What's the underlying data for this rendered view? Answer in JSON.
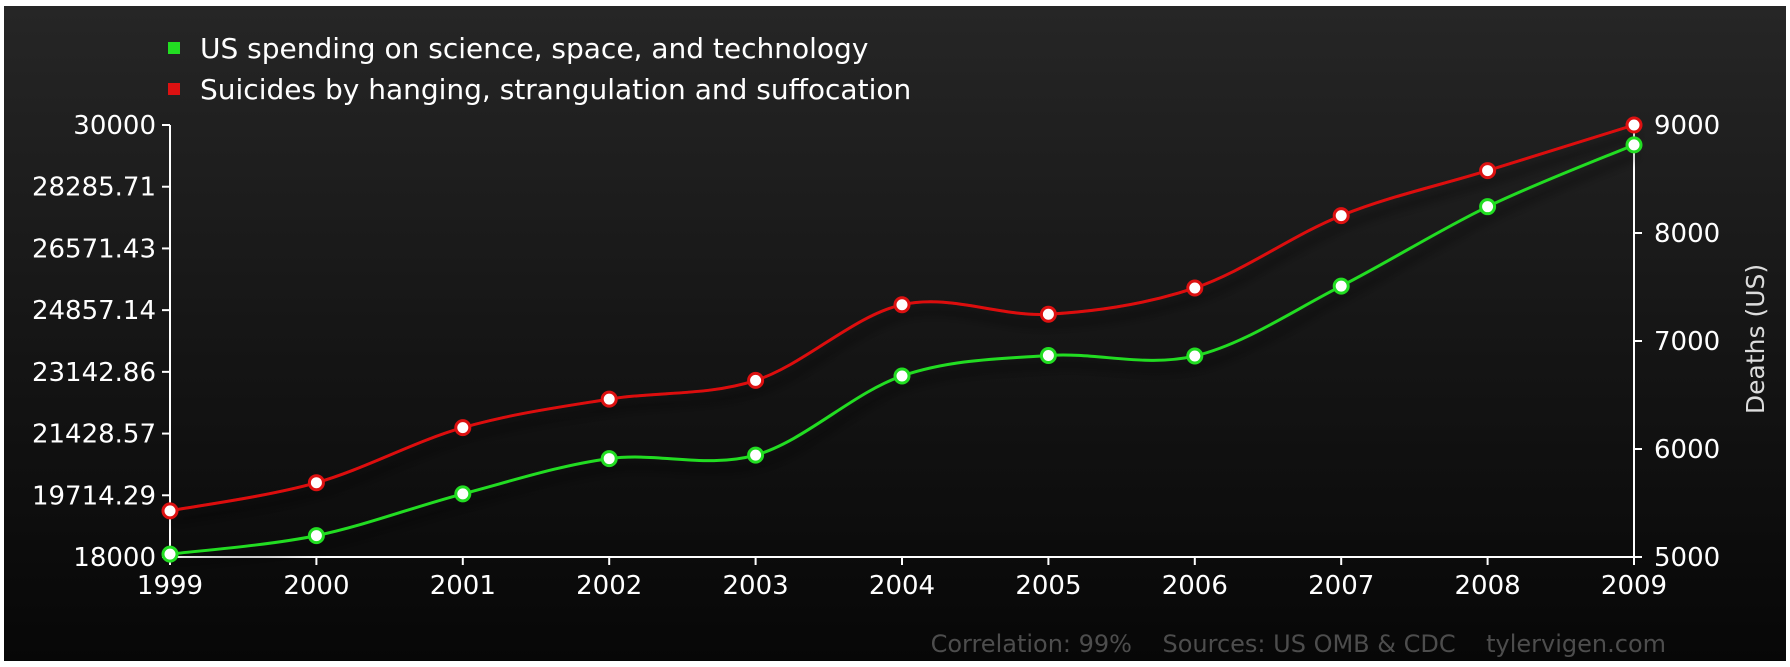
{
  "chart_data": {
    "type": "line",
    "x": [
      "1999",
      "2000",
      "2001",
      "2002",
      "2003",
      "2004",
      "2005",
      "2006",
      "2007",
      "2008",
      "2009"
    ],
    "series": [
      {
        "name": "US spending on science, space, and technology",
        "color": "#22dd22",
        "axis": "left",
        "values": [
          18079,
          18594,
          19753,
          20734,
          20831,
          23029,
          23597,
          23584,
          25525,
          27731,
          29449
        ]
      },
      {
        "name": "Suicides by hanging, strangulation and suffocation",
        "color": "#dd1111",
        "axis": "right",
        "values": [
          5427,
          5688,
          6198,
          6462,
          6635,
          7336,
          7248,
          7491,
          8161,
          8578,
          9000
        ]
      }
    ],
    "y_left": {
      "label": "",
      "ylim": [
        18000,
        30000
      ],
      "ticks": [
        "30000",
        "28285.71",
        "26571.43",
        "24857.14",
        "23142.86",
        "21428.57",
        "19714.29",
        "18000"
      ],
      "tick_values": [
        30000,
        28285.71,
        26571.43,
        24857.14,
        23142.86,
        21428.57,
        19714.29,
        18000
      ]
    },
    "y_right": {
      "label": "Deaths (US)",
      "ylim": [
        5000,
        9000
      ],
      "ticks": [
        "9000",
        "8000",
        "7000",
        "6000",
        "5000"
      ],
      "tick_values": [
        9000,
        8000,
        7000,
        6000,
        5000
      ]
    },
    "grid": false,
    "legend": "top-left",
    "footer": "Correlation: 99%    Sources: US OMB & CDC    tylervigen.com",
    "colors": {
      "background": "#141414",
      "axis": "#ffffff",
      "footer": "#4d4d4d"
    }
  }
}
